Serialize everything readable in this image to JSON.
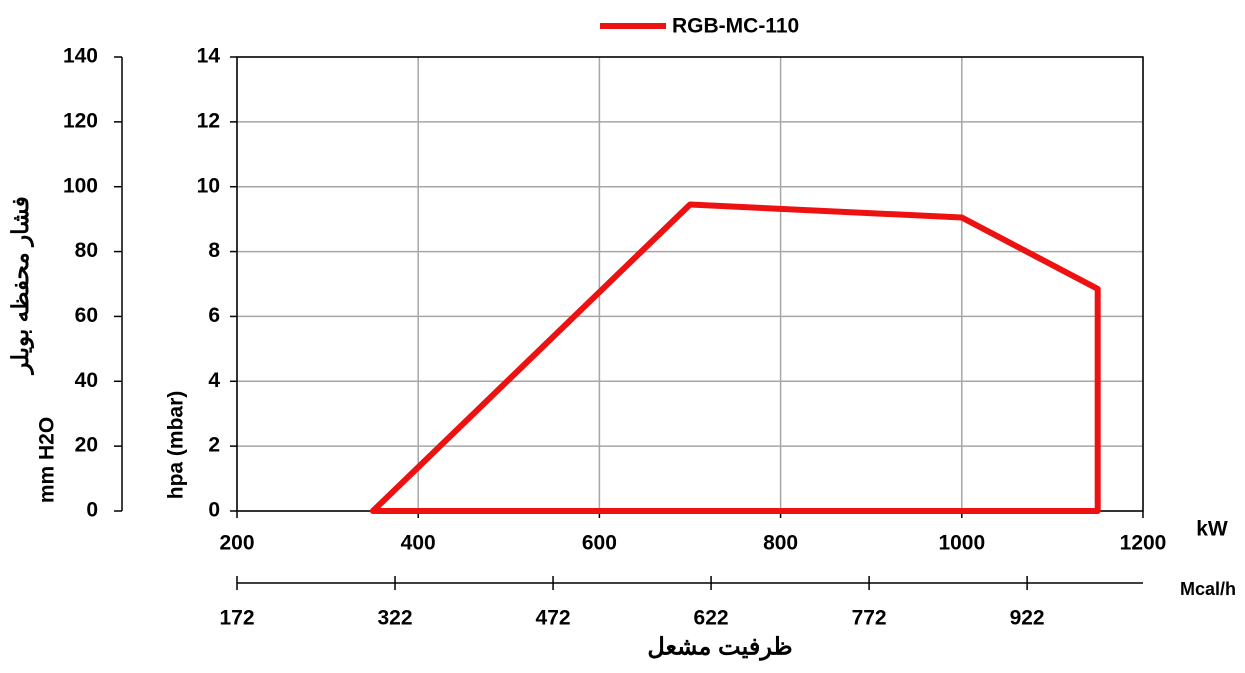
{
  "chart_data": {
    "type": "line",
    "x_label": "kW",
    "y_label": "hpa (mbar)",
    "x2_label": "Mcal/h",
    "x2_title": "ظرفیت مشعل",
    "y2_label": "mm H2O",
    "y2_title": "فشار محفظه بویلر",
    "xlim": [
      200,
      1200
    ],
    "xticks": [
      200,
      400,
      600,
      800,
      1000,
      1200
    ],
    "ylim": [
      0,
      14
    ],
    "yticks": [
      0,
      2,
      4,
      6,
      8,
      10,
      12,
      14
    ],
    "x2lim": [
      172,
      1032
    ],
    "x2ticks": [
      172,
      322,
      472,
      622,
      772,
      922
    ],
    "y2lim": [
      0,
      140
    ],
    "y2ticks": [
      0,
      20,
      40,
      60,
      80,
      100,
      120,
      140
    ],
    "grid": true,
    "legend": "top",
    "series": [
      {
        "name": "RGB-MC-110",
        "color": "#ee1111",
        "x": [
          350,
          700,
          1000,
          1150,
          1150,
          350
        ],
        "values": [
          0,
          9.45,
          9.05,
          6.85,
          0,
          0
        ]
      }
    ]
  }
}
